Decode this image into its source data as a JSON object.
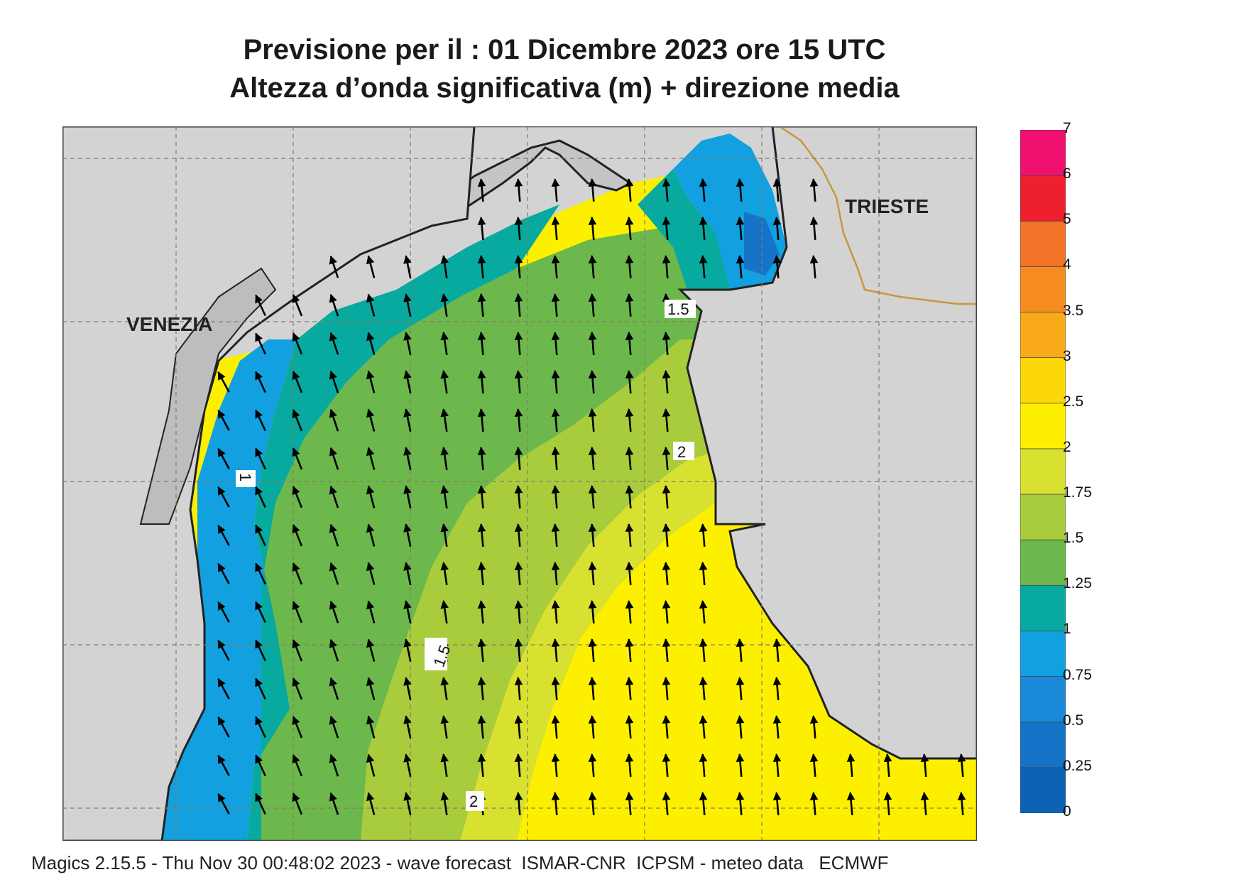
{
  "title": {
    "line1": "Previsione per il  :  01 Dicembre  2023   ore 15 UTC",
    "line2": "Altezza d’onda significativa (m) + direzione media"
  },
  "map": {
    "cities": [
      "VENEZIA",
      "TRIESTE"
    ],
    "contour_labels": [
      "1",
      "1.5",
      "1.5",
      "2",
      "2"
    ],
    "colors": {
      "land": "#d3d3d3",
      "coast": "#222222",
      "border": "#c8963c",
      "grid": "#8c7a5f",
      "arrow": "#000000"
    }
  },
  "legend": {
    "labels": [
      "7",
      "6",
      "5",
      "4",
      "3.5",
      "3",
      "2.5",
      "2",
      "1.75",
      "1.5",
      "1.25",
      "1",
      "0.75",
      "0.5",
      "0.25",
      "0"
    ],
    "colors": [
      "#f01070",
      "#ee2030",
      "#f27228",
      "#f68c20",
      "#f8aa18",
      "#fcd80a",
      "#fcf000",
      "#d8e030",
      "#a8cc3c",
      "#6cb84c",
      "#08aaa0",
      "#12a0e0",
      "#1a8ad8",
      "#1574c8",
      "#0d62b6"
    ]
  },
  "footer": "Magics 2.15.5 - Thu Nov 30 00:48:02 2023 - wave forecast  ISMAR-CNR  ICPSM - meteo data   ECMWF"
}
